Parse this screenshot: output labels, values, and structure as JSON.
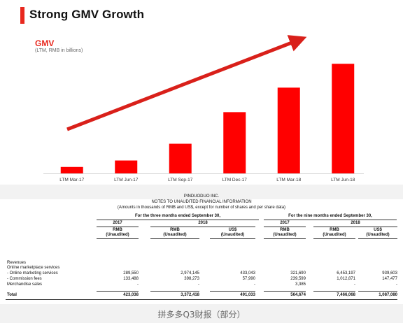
{
  "slide": {
    "title": "Strong GMV Growth",
    "accent_color": "#e8281e"
  },
  "chart_data": {
    "type": "bar",
    "title": "GMV",
    "subtitle": "(LTM, RMB in billions)",
    "categories": [
      "LTM Mar-17",
      "LTM Jun-17",
      "LTM Sep-17",
      "LTM Dec-17",
      "LTM Mar-18",
      "LTM Jun-18"
    ],
    "values": [
      10,
      20,
      46,
      95,
      133,
      170
    ],
    "ylim": [
      0,
      180
    ],
    "bar_color": "#ff0000",
    "grid": false,
    "legend": "none",
    "annotations": [
      "growth arrow (red, rising left to right)"
    ]
  },
  "report": {
    "company": "PINDUODUO INC.",
    "heading": "NOTES TO UNAUDITED FINANCIAL INFORMATION",
    "note": "(Amounts in thousands of RMB and US$, except for number of shares and per share data)",
    "period_three": "For the three months ended September 30,",
    "period_nine": "For the nine months ended September 30,",
    "year_2017": "2017",
    "year_2018": "2018",
    "col_rmb": "RMB",
    "col_usd": "US$",
    "unaudited": "(Unaudited)",
    "rows": [
      {
        "label": "Revenues",
        "v": [
          "",
          "",
          "",
          "",
          "",
          ""
        ]
      },
      {
        "label": "Online marketplace services",
        "v": [
          "",
          "",
          "",
          "",
          "",
          ""
        ]
      },
      {
        "label": " - Online marketing services",
        "v": [
          "289,550",
          "2,974,145",
          "433,043",
          "321,690",
          "6,453,197",
          "939,603"
        ]
      },
      {
        "label": " - Commission fees",
        "v": [
          "133,488",
          "398,273",
          "57,990",
          "239,599",
          "1,012,871",
          "147,477"
        ]
      },
      {
        "label": "Merchandise sales",
        "v": [
          "-",
          "-",
          "-",
          "3,385",
          "-",
          "-"
        ]
      },
      {
        "label": "Total",
        "v": [
          "423,038",
          "3,372,418",
          "491,033",
          "564,674",
          "7,466,068",
          "1,087,080"
        ]
      }
    ]
  },
  "watermark": "拼多多Q3财报（部分）"
}
